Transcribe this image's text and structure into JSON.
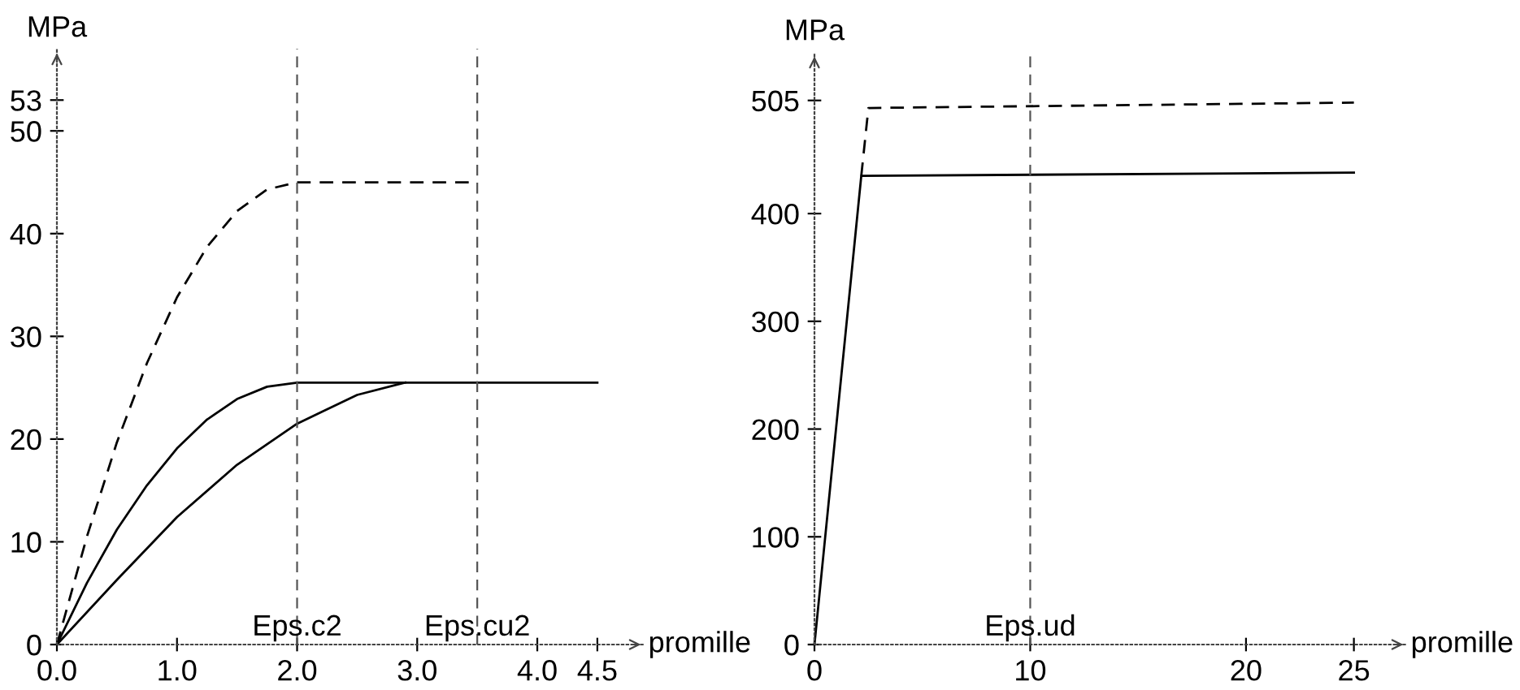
{
  "chart_data": [
    {
      "type": "line",
      "xlabel": "promille",
      "ylabel": "MPa",
      "xlim": [
        0,
        4.9
      ],
      "ylim": [
        0,
        58
      ],
      "xticks": [
        {
          "value": 0,
          "label": "0.0"
        },
        {
          "value": 1,
          "label": "1.0"
        },
        {
          "value": 2,
          "label": "2.0"
        },
        {
          "value": 3,
          "label": "3.0"
        },
        {
          "value": 4,
          "label": "4.0"
        },
        4.5
      ],
      "yticks": [
        0,
        10,
        20,
        30,
        40,
        50,
        53
      ],
      "grid": false,
      "legend": false,
      "marker": "none",
      "series": [
        {
          "color": "#000000",
          "line_style": "dashed",
          "x": [
            0,
            0.25,
            0.5,
            0.75,
            1.0,
            1.25,
            1.5,
            1.75,
            2.0,
            3.5
          ],
          "values": [
            0,
            10.5,
            19.7,
            27.4,
            33.8,
            38.7,
            42.2,
            44.3,
            45,
            45
          ]
        },
        {
          "color": "#000000",
          "line_style": "solid",
          "x": [
            0,
            0.25,
            0.5,
            0.75,
            1.0,
            1.25,
            1.5,
            1.75,
            2.0,
            4.5
          ],
          "values": [
            0,
            6.0,
            11.2,
            15.5,
            19.1,
            21.9,
            23.9,
            25.1,
            25.5,
            25.5
          ]
        },
        {
          "color": "#000000",
          "line_style": "solid",
          "x": [
            0,
            0.5,
            1.0,
            1.5,
            2.0,
            2.5,
            2.9
          ],
          "values": [
            0,
            6.3,
            12.4,
            17.5,
            21.5,
            24.3,
            25.5
          ]
        }
      ],
      "ref_lines": [
        {
          "axis": "x",
          "value": 2.0,
          "label": "Eps.c2",
          "color": "#555555",
          "line_style": "dashed"
        },
        {
          "axis": "x",
          "value": 3.5,
          "label": "Eps.cu2",
          "color": "#555555",
          "line_style": "dashed"
        }
      ]
    },
    {
      "type": "line",
      "xlabel": "promille",
      "ylabel": "MPa",
      "xlim": [
        0,
        27.5
      ],
      "ylim": [
        0,
        550
      ],
      "xticks": [
        0,
        10,
        20,
        25
      ],
      "yticks": [
        0,
        100,
        200,
        300,
        400,
        505
      ],
      "grid": false,
      "legend": false,
      "marker": "none",
      "series": [
        {
          "color": "#000000",
          "line_style": "dashed",
          "x": [
            2.17,
            2.5,
            25
          ],
          "values": [
            435,
            498,
            503
          ]
        },
        {
          "color": "#000000",
          "line_style": "solid",
          "x": [
            0,
            2.17,
            25
          ],
          "values": [
            0,
            435,
            438
          ]
        }
      ],
      "ref_lines": [
        {
          "axis": "x",
          "value": 10,
          "label": "Eps.ud",
          "color": "#555555",
          "line_style": "dashed"
        }
      ]
    }
  ]
}
